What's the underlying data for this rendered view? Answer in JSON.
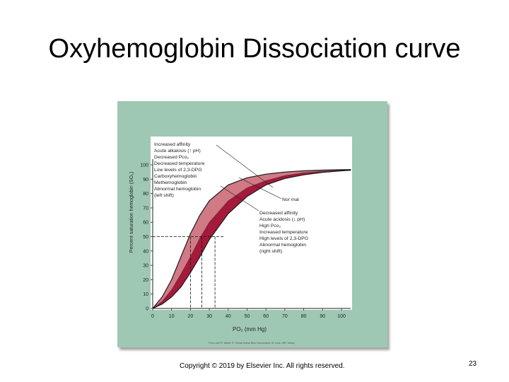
{
  "slide": {
    "title": "Oxyhemoglobin Dissociation curve",
    "copyright": "Copyright © 2019 by Elsevier Inc. All rights reserved.",
    "page_number": "23"
  },
  "colors": {
    "panel": "#9fc8b4",
    "plot_bg": "#ffffff",
    "left_shift_band": "#d07a86",
    "right_shift_band": "#a5193a",
    "curve": "#1a1a1a"
  },
  "chart_data": {
    "type": "line",
    "title": "",
    "xlabel": "PO₂ (mm Hg)",
    "ylabel": "Percent saturation hemoglobin (SO₂)",
    "xlim": [
      0,
      105
    ],
    "ylim": [
      0,
      100
    ],
    "x_ticks": [
      0,
      10,
      20,
      30,
      40,
      50,
      60,
      70,
      80,
      90,
      100
    ],
    "y_ticks": [
      0,
      10,
      20,
      30,
      40,
      50,
      60,
      70,
      80,
      90,
      100
    ],
    "grid": false,
    "series": [
      {
        "name": "Increased affinity (left shift)",
        "x": [
          0,
          5,
          10,
          15,
          20,
          25,
          30,
          40,
          50,
          60,
          70,
          80,
          90,
          100,
          105
        ],
        "y": [
          0,
          8,
          20,
          36,
          52,
          65,
          75,
          86,
          91,
          93.5,
          95,
          95.8,
          96.3,
          96.6,
          96.7
        ]
      },
      {
        "name": "Normal",
        "x": [
          0,
          5,
          10,
          15,
          20,
          25,
          30,
          40,
          50,
          60,
          70,
          80,
          90,
          100,
          105
        ],
        "y": [
          0,
          5,
          13,
          24,
          36,
          49,
          60,
          75,
          84,
          89,
          92.5,
          94.5,
          95.5,
          96.3,
          96.5
        ]
      },
      {
        "name": "Decreased affinity (right shift)",
        "x": [
          0,
          5,
          10,
          15,
          20,
          25,
          30,
          40,
          50,
          60,
          70,
          80,
          90,
          100,
          105
        ],
        "y": [
          0,
          3,
          8,
          15,
          25,
          36,
          48,
          66,
          78,
          86,
          90.5,
          93,
          94.8,
          95.8,
          96.2
        ]
      }
    ],
    "p50_markers": [
      {
        "x": 20,
        "y": 50
      },
      {
        "x": 26,
        "y": 50
      },
      {
        "x": 33,
        "y": 50
      }
    ],
    "annotations": {
      "left_shift_lines": [
        "Increased affinity",
        "Acute alkalosis (↑ pH)",
        "Decreased Pco₂",
        "Decreased temperature",
        "Low levels of 2,3-DPG",
        "Carboxyhemoglobin",
        "Methemoglobin",
        "Abnormal hemoglobin",
        "(left shift)"
      ],
      "normal_label": "Nor mal",
      "right_shift_lines": [
        "Decreased affinity",
        "Acute acidosis (↓ pH)",
        "High Pco₂",
        "Increased temperature",
        "High levels of 2,3-DPG",
        "Abnormal hemoglobin",
        "(right shift)"
      ],
      "source": "From Lane PF, Walker JF: Clinical Arterial Blood Gas Analysis, St. Louis, 1987, Mosby."
    }
  }
}
